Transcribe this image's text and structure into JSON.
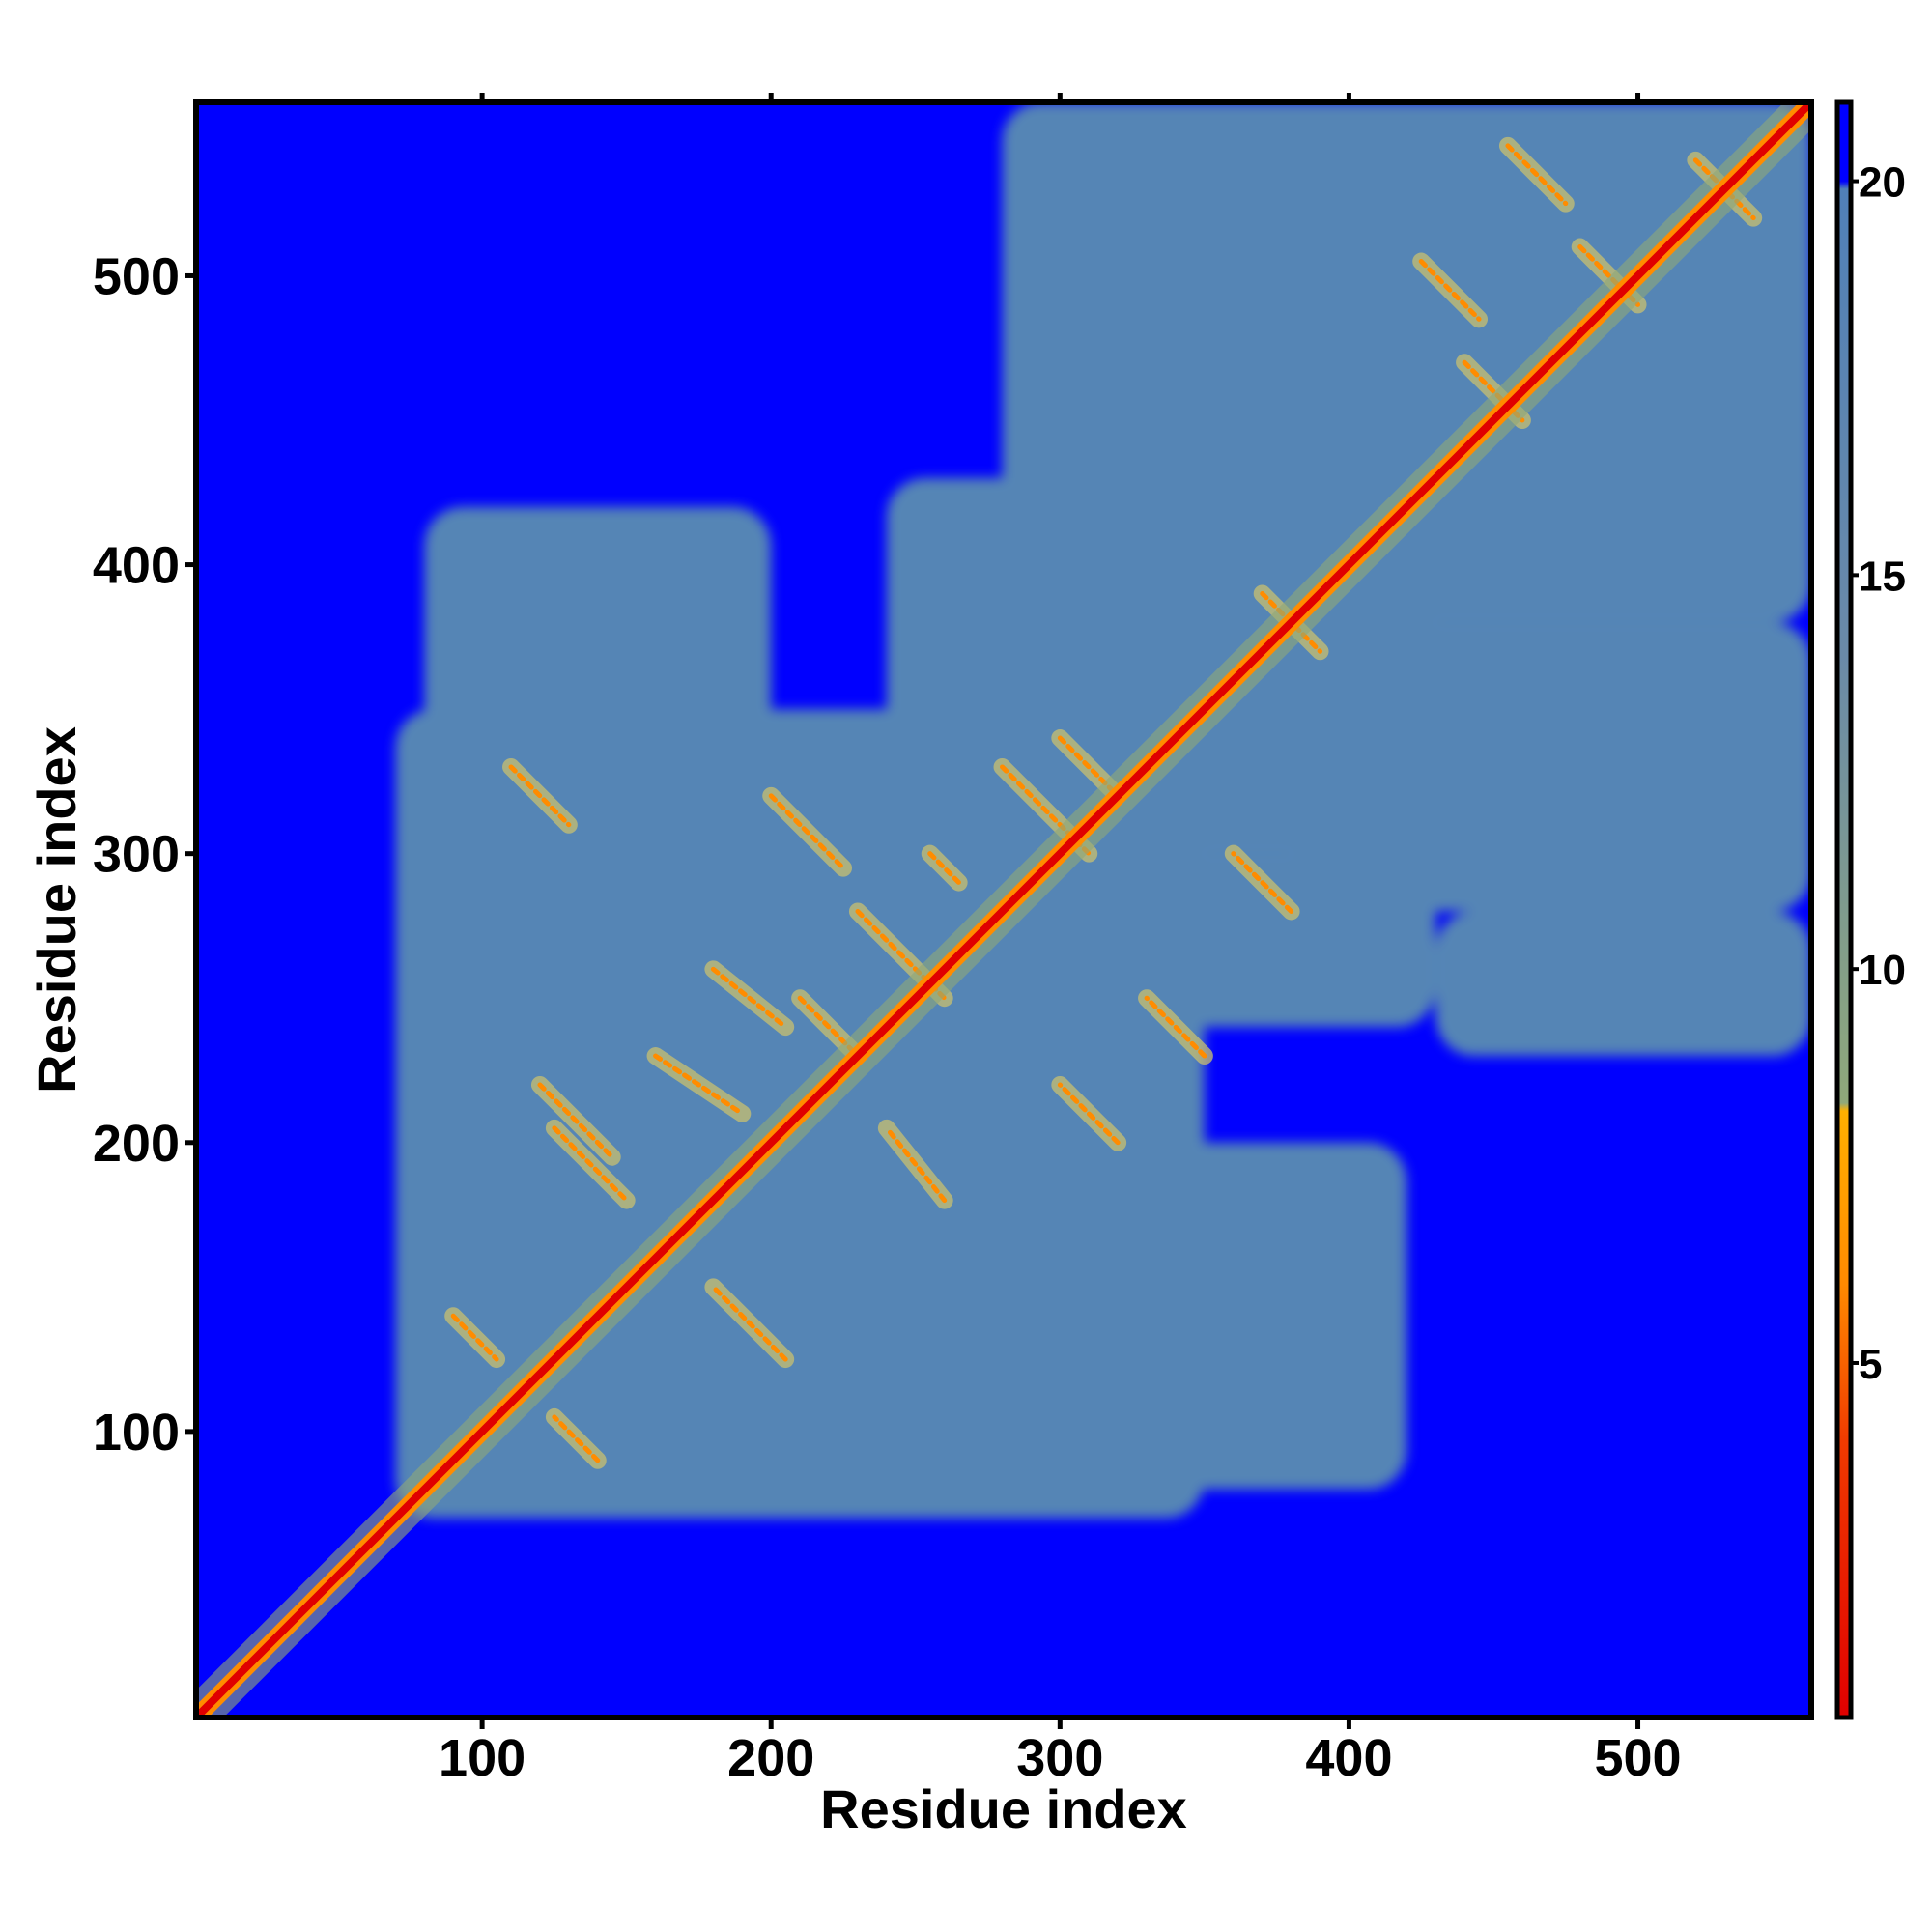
{
  "chart_data": {
    "type": "heatmap",
    "title": "",
    "xlabel": "Residue index",
    "ylabel": "Residue index",
    "xlim": [
      1,
      560
    ],
    "ylim": [
      1,
      560
    ],
    "x_ticks": [
      100,
      200,
      300,
      400,
      500
    ],
    "y_ticks": [
      100,
      200,
      300,
      400,
      500
    ],
    "colorbar": {
      "range": [
        0.5,
        21
      ],
      "ticks": [
        5,
        10,
        15,
        20
      ],
      "stops": [
        {
          "value": 0.5,
          "color": "#e00000"
        },
        {
          "value": 4,
          "color": "#f03a00"
        },
        {
          "value": 6,
          "color": "#ff8a00"
        },
        {
          "value": 8.2,
          "color": "#ffb000"
        },
        {
          "value": 8.3,
          "color": "#8fa87a"
        },
        {
          "value": 14,
          "color": "#6a8aa8"
        },
        {
          "value": 19.9,
          "color": "#5080b8"
        },
        {
          "value": 20,
          "color": "#0000ff"
        },
        {
          "value": 21,
          "color": "#0000ff"
        }
      ]
    },
    "colors": {
      "background": "#0000ff",
      "intermediate": "#5585b5",
      "contact": "#ff8c00",
      "diagonal": "#e00000"
    },
    "diagonal": [
      [
        1,
        1
      ],
      [
        560,
        560
      ]
    ],
    "intermediate_regions": [
      {
        "x": [
          70,
          350
        ],
        "y": [
          70,
          350
        ]
      },
      {
        "x": [
          240,
          430
        ],
        "y": [
          300,
          430
        ]
      },
      {
        "x": [
          300,
          430
        ],
        "y": [
          240,
          300
        ]
      },
      {
        "x": [
          280,
          560
        ],
        "y": [
          380,
          560
        ]
      },
      {
        "x": [
          380,
          560
        ],
        "y": [
          280,
          380
        ]
      },
      {
        "x": [
          420,
          560
        ],
        "y": [
          420,
          560
        ]
      },
      {
        "x": [
          330,
          420
        ],
        "y": [
          80,
          200
        ]
      },
      {
        "x": [
          80,
          200
        ],
        "y": [
          330,
          420
        ]
      },
      {
        "x": [
          430,
          560
        ],
        "y": [
          230,
          280
        ]
      }
    ],
    "contacts": [
      [
        [
          125,
          205
        ],
        [
          150,
          180
        ]
      ],
      [
        [
          205,
          125
        ],
        [
          180,
          150
        ]
      ],
      [
        [
          160,
          230
        ],
        [
          190,
          210
        ]
      ],
      [
        [
          210,
          250
        ],
        [
          230,
          230
        ]
      ],
      [
        [
          255,
          300
        ],
        [
          265,
          290
        ]
      ],
      [
        [
          300,
          340
        ],
        [
          320,
          320
        ]
      ],
      [
        [
          120,
          220
        ],
        [
          145,
          195
        ]
      ],
      [
        [
          230,
          280
        ],
        [
          260,
          250
        ]
      ],
      [
        [
          280,
          330
        ],
        [
          310,
          300
        ]
      ],
      [
        [
          110,
          330
        ],
        [
          130,
          310
        ]
      ],
      [
        [
          200,
          320
        ],
        [
          225,
          295
        ]
      ],
      [
        [
          320,
          200
        ],
        [
          300,
          220
        ]
      ],
      [
        [
          350,
          230
        ],
        [
          330,
          250
        ]
      ],
      [
        [
          380,
          280
        ],
        [
          360,
          300
        ]
      ],
      [
        [
          370,
          390
        ],
        [
          390,
          370
        ]
      ],
      [
        [
          440,
          470
        ],
        [
          460,
          450
        ]
      ],
      [
        [
          480,
          510
        ],
        [
          500,
          490
        ]
      ],
      [
        [
          520,
          540
        ],
        [
          540,
          520
        ]
      ],
      [
        [
          455,
          545
        ],
        [
          475,
          525
        ]
      ],
      [
        [
          425,
          505
        ],
        [
          445,
          485
        ]
      ],
      [
        [
          180,
          260
        ],
        [
          205,
          240
        ]
      ],
      [
        [
          260,
          180
        ],
        [
          240,
          205
        ]
      ],
      [
        [
          90,
          140
        ],
        [
          105,
          125
        ]
      ],
      [
        [
          140,
          90
        ],
        [
          125,
          105
        ]
      ]
    ]
  }
}
